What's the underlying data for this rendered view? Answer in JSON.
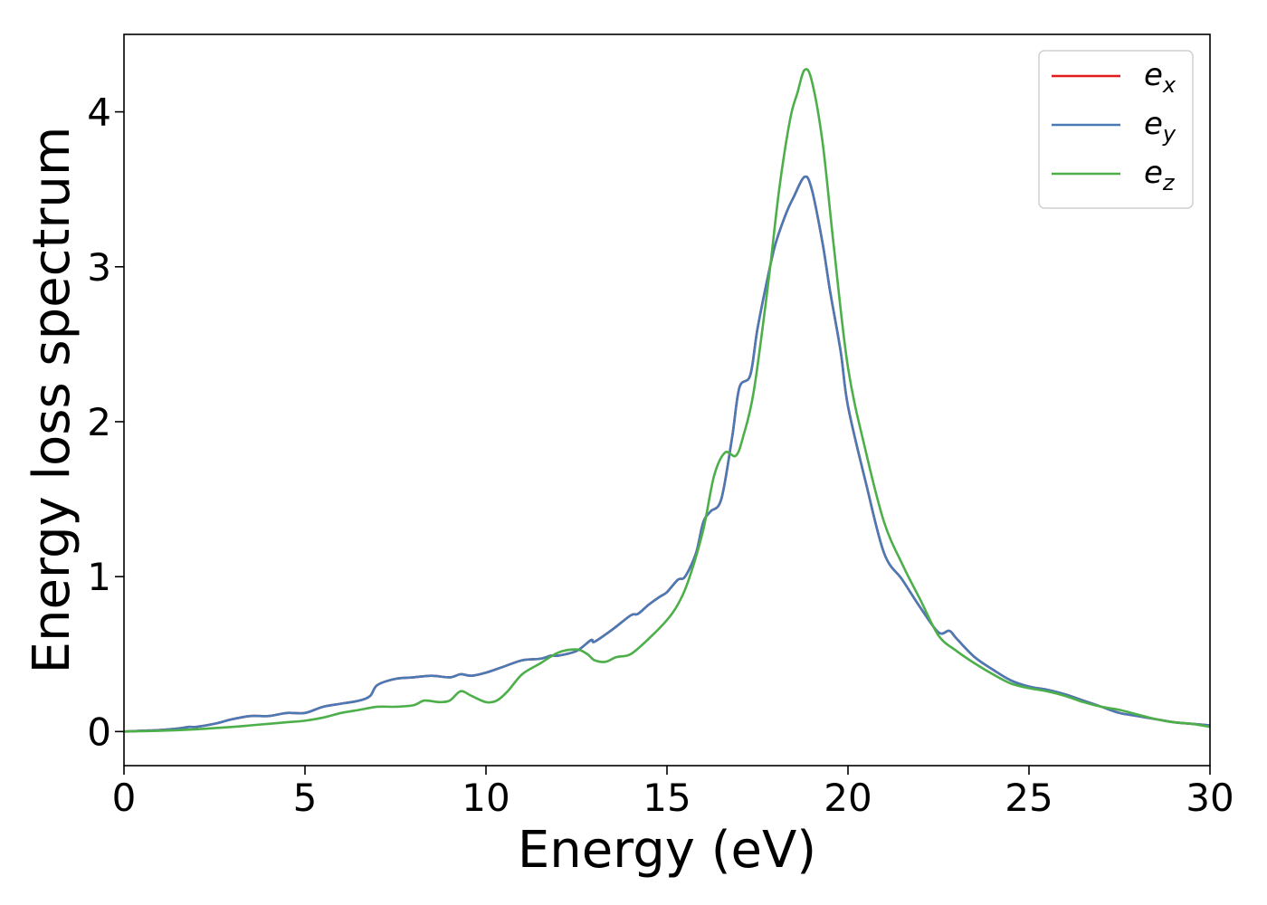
{
  "chart_data": {
    "type": "line",
    "title": "",
    "xlabel": "Energy (eV)",
    "ylabel": "Energy loss spectrum",
    "xlim": [
      0,
      30
    ],
    "ylim": [
      -0.22,
      4.5
    ],
    "xticks": [
      0,
      5,
      10,
      15,
      20,
      25,
      30
    ],
    "yticks": [
      0,
      1,
      2,
      3,
      4
    ],
    "grid": false,
    "legend_position": "top-right",
    "series": [
      {
        "name": "e",
        "subscript": "x",
        "color": "#e41a1c",
        "x": [
          0,
          0.5,
          1,
          1.5,
          1.8,
          2,
          2.5,
          3,
          3.5,
          4,
          4.5,
          5,
          5.5,
          6,
          6.5,
          6.8,
          7,
          7.5,
          8,
          8.5,
          9,
          9.3,
          9.6,
          10,
          10.5,
          11,
          11.5,
          11.8,
          12,
          12.5,
          12.9,
          13,
          13.5,
          14,
          14.2,
          14.5,
          14.8,
          15,
          15.3,
          15.5,
          15.8,
          16,
          16.2,
          16.5,
          16.8,
          17,
          17.3,
          17.5,
          17.8,
          18,
          18.3,
          18.5,
          18.8,
          19,
          19.3,
          19.5,
          19.8,
          20,
          20.5,
          21,
          21.5,
          22,
          22.5,
          22.8,
          23,
          23.5,
          24,
          24.5,
          25,
          25.5,
          26,
          26.5,
          27,
          27.5,
          28,
          28.5,
          29,
          29.5,
          30
        ],
        "y": [
          0,
          0.005,
          0.01,
          0.02,
          0.03,
          0.03,
          0.05,
          0.08,
          0.1,
          0.1,
          0.12,
          0.12,
          0.16,
          0.18,
          0.2,
          0.23,
          0.3,
          0.34,
          0.35,
          0.36,
          0.35,
          0.37,
          0.36,
          0.38,
          0.42,
          0.46,
          0.47,
          0.49,
          0.49,
          0.52,
          0.59,
          0.58,
          0.66,
          0.75,
          0.76,
          0.82,
          0.87,
          0.9,
          0.98,
          1.0,
          1.15,
          1.35,
          1.42,
          1.5,
          1.9,
          2.22,
          2.3,
          2.6,
          2.95,
          3.15,
          3.35,
          3.45,
          3.58,
          3.5,
          3.15,
          2.85,
          2.45,
          2.1,
          1.6,
          1.15,
          0.98,
          0.8,
          0.64,
          0.65,
          0.6,
          0.48,
          0.4,
          0.33,
          0.29,
          0.27,
          0.24,
          0.2,
          0.16,
          0.12,
          0.1,
          0.08,
          0.06,
          0.05,
          0.04
        ]
      },
      {
        "name": "e",
        "subscript": "y",
        "color": "#4a7ab5",
        "x": [
          0,
          0.5,
          1,
          1.5,
          1.8,
          2,
          2.5,
          3,
          3.5,
          4,
          4.5,
          5,
          5.5,
          6,
          6.5,
          6.8,
          7,
          7.5,
          8,
          8.5,
          9,
          9.3,
          9.6,
          10,
          10.5,
          11,
          11.5,
          11.8,
          12,
          12.5,
          12.9,
          13,
          13.5,
          14,
          14.2,
          14.5,
          14.8,
          15,
          15.3,
          15.5,
          15.8,
          16,
          16.2,
          16.5,
          16.8,
          17,
          17.3,
          17.5,
          17.8,
          18,
          18.3,
          18.5,
          18.8,
          19,
          19.3,
          19.5,
          19.8,
          20,
          20.5,
          21,
          21.5,
          22,
          22.5,
          22.8,
          23,
          23.5,
          24,
          24.5,
          25,
          25.5,
          26,
          26.5,
          27,
          27.5,
          28,
          28.5,
          29,
          29.5,
          30
        ],
        "y": [
          0,
          0.005,
          0.01,
          0.02,
          0.03,
          0.03,
          0.05,
          0.08,
          0.1,
          0.1,
          0.12,
          0.12,
          0.16,
          0.18,
          0.2,
          0.23,
          0.3,
          0.34,
          0.35,
          0.36,
          0.35,
          0.37,
          0.36,
          0.38,
          0.42,
          0.46,
          0.47,
          0.49,
          0.49,
          0.52,
          0.59,
          0.58,
          0.66,
          0.75,
          0.76,
          0.82,
          0.87,
          0.9,
          0.98,
          1.0,
          1.15,
          1.35,
          1.42,
          1.5,
          1.9,
          2.22,
          2.3,
          2.6,
          2.95,
          3.15,
          3.35,
          3.45,
          3.58,
          3.5,
          3.15,
          2.85,
          2.45,
          2.1,
          1.6,
          1.15,
          0.98,
          0.8,
          0.64,
          0.65,
          0.6,
          0.48,
          0.4,
          0.33,
          0.29,
          0.27,
          0.24,
          0.2,
          0.16,
          0.12,
          0.1,
          0.08,
          0.06,
          0.05,
          0.04
        ]
      },
      {
        "name": "e",
        "subscript": "z",
        "color": "#4daf4a",
        "x": [
          0,
          1,
          2,
          3,
          3.5,
          4,
          4.5,
          5,
          5.5,
          6,
          6.5,
          7,
          7.5,
          8,
          8.3,
          8.7,
          9,
          9.3,
          9.6,
          10,
          10.3,
          10.6,
          11,
          11.5,
          12,
          12.5,
          12.8,
          13,
          13.3,
          13.6,
          14,
          14.5,
          15,
          15.3,
          15.6,
          16,
          16.3,
          16.6,
          16.9,
          17.1,
          17.4,
          17.8,
          18.1,
          18.4,
          18.6,
          18.8,
          19,
          19.3,
          19.6,
          20,
          20.5,
          21,
          21.5,
          22,
          22.5,
          23,
          23.5,
          24,
          24.5,
          25,
          25.5,
          26,
          26.5,
          27,
          27.5,
          28,
          28.5,
          29,
          29.5,
          30
        ],
        "y": [
          0,
          0.005,
          0.015,
          0.03,
          0.04,
          0.05,
          0.06,
          0.07,
          0.09,
          0.12,
          0.14,
          0.16,
          0.16,
          0.17,
          0.2,
          0.19,
          0.2,
          0.26,
          0.23,
          0.19,
          0.2,
          0.26,
          0.37,
          0.44,
          0.51,
          0.53,
          0.5,
          0.46,
          0.45,
          0.48,
          0.5,
          0.6,
          0.72,
          0.82,
          0.98,
          1.3,
          1.65,
          1.8,
          1.78,
          1.9,
          2.2,
          2.9,
          3.5,
          3.95,
          4.12,
          4.27,
          4.2,
          3.8,
          3.15,
          2.35,
          1.8,
          1.35,
          1.08,
          0.85,
          0.62,
          0.52,
          0.44,
          0.37,
          0.31,
          0.28,
          0.26,
          0.23,
          0.19,
          0.16,
          0.14,
          0.11,
          0.08,
          0.06,
          0.05,
          0.03
        ]
      }
    ]
  }
}
